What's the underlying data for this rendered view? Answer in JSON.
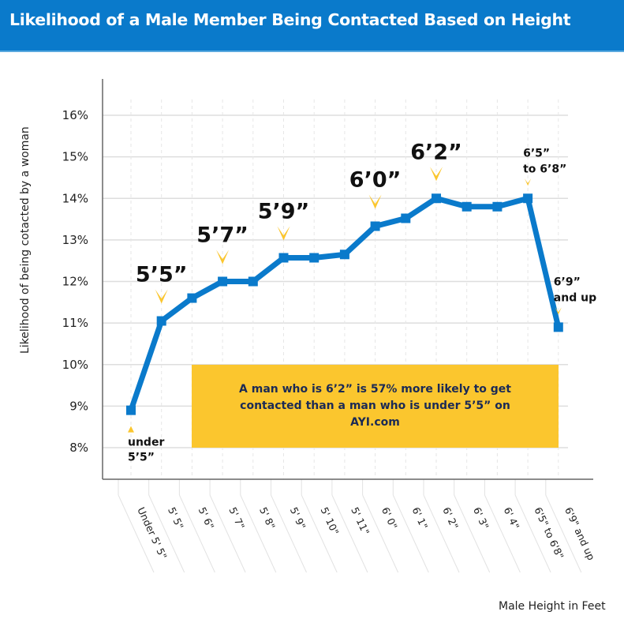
{
  "chart_data": {
    "type": "line",
    "title": "Likelihood of a Male Member Being Contacted Based on Height",
    "xlabel": "Male Height in Feet",
    "ylabel": "Likelihood of being cotacted by a woman",
    "categories": [
      "Under 5' 5\"",
      "5' 5\"",
      "5' 6\"",
      "5' 7\"",
      "5' 8\"",
      "5' 9\"",
      "5' 10\"",
      "5' 11\"",
      "6' 0\"",
      "6' 1\"",
      "6' 2\"",
      "6' 3\"",
      "6' 4\"",
      "6'5\" to 6'8\"",
      "6'9\" and up"
    ],
    "values": [
      8.9,
      11.05,
      11.6,
      12.0,
      12.0,
      12.57,
      12.57,
      12.65,
      13.33,
      13.52,
      14.0,
      13.8,
      13.8,
      14.0,
      10.9
    ],
    "ylim": [
      8,
      16
    ],
    "yticks": [
      "8%",
      "9%",
      "10%",
      "11%",
      "12%",
      "13%",
      "14%",
      "15%",
      "16%"
    ],
    "grid": true,
    "line_color": "#0A7ACB",
    "marker_color": "#FBC62E",
    "annotations": [
      {
        "index": 0,
        "lines": [
          "under",
          "5’5”"
        ],
        "size": "small",
        "position": "below"
      },
      {
        "index": 1,
        "lines": [
          "5’5”"
        ],
        "size": "big"
      },
      {
        "index": 3,
        "lines": [
          "5’7”"
        ],
        "size": "big"
      },
      {
        "index": 5,
        "lines": [
          "5’9”"
        ],
        "size": "big"
      },
      {
        "index": 8,
        "lines": [
          "6’0”"
        ],
        "size": "big"
      },
      {
        "index": 10,
        "lines": [
          "6’2”"
        ],
        "size": "big"
      },
      {
        "index": 13,
        "lines": [
          "6’5”",
          "to 6’8”"
        ],
        "size": "small"
      },
      {
        "index": 14,
        "lines": [
          "6’9”",
          "and up"
        ],
        "size": "small"
      }
    ],
    "callout": "A man who is 6’2” is 57% more likely to get contacted than a man who is under 5’5” on AYI.com"
  }
}
